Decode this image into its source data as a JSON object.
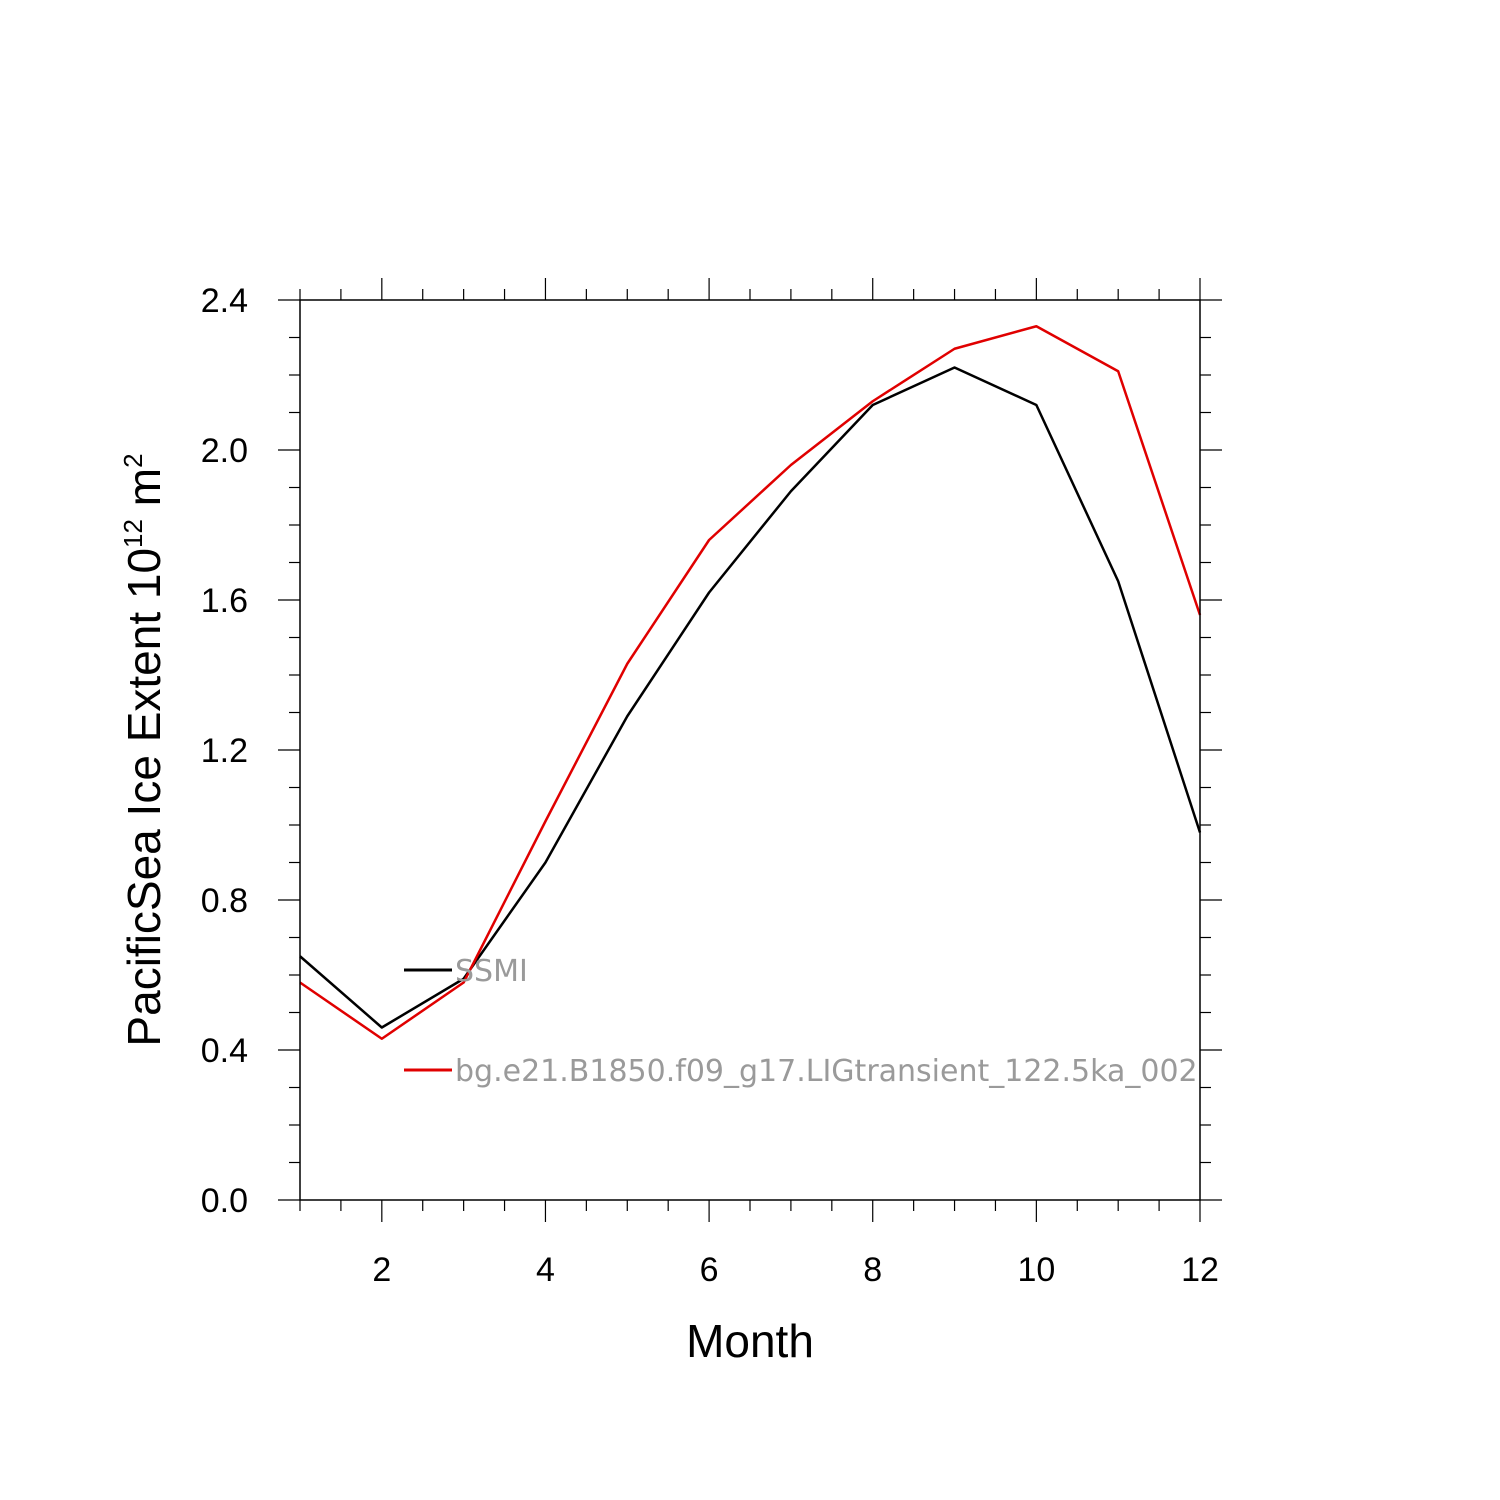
{
  "chart_data": {
    "type": "line",
    "title": "",
    "xlabel": "Month",
    "ylabel": "PacificSea Ice Extent 10",
    "ylabel_sup1": "12",
    "ylabel_mid": " m",
    "ylabel_sup2": "2",
    "xlim": [
      1,
      12
    ],
    "ylim": [
      0.0,
      2.4
    ],
    "x_ticks": [
      2,
      4,
      6,
      8,
      10,
      12
    ],
    "x_tick_labels": [
      "2",
      "4",
      "6",
      "8",
      "10",
      "12"
    ],
    "y_ticks": [
      0.0,
      0.4,
      0.8,
      1.2,
      1.6,
      2.0,
      2.4
    ],
    "y_tick_labels": [
      "0.0",
      "0.4",
      "0.8",
      "1.2",
      "1.6",
      "2.0",
      "2.4"
    ],
    "x": [
      1,
      2,
      3,
      4,
      5,
      6,
      7,
      8,
      9,
      10,
      11,
      12
    ],
    "series": [
      {
        "name": "SSMI",
        "color": "#000000",
        "values": [
          0.65,
          0.46,
          0.59,
          0.9,
          1.29,
          1.62,
          1.89,
          2.12,
          2.22,
          2.12,
          1.65,
          0.98
        ]
      },
      {
        "name": "bg.e21.B1850.f09_g17.LIGtransient_122.5ka_002",
        "color": "#e00000",
        "values": [
          0.58,
          0.43,
          0.58,
          1.01,
          1.43,
          1.76,
          1.96,
          2.13,
          2.27,
          2.33,
          2.21,
          1.56
        ]
      }
    ],
    "legend_position": "inside-lower-left"
  }
}
